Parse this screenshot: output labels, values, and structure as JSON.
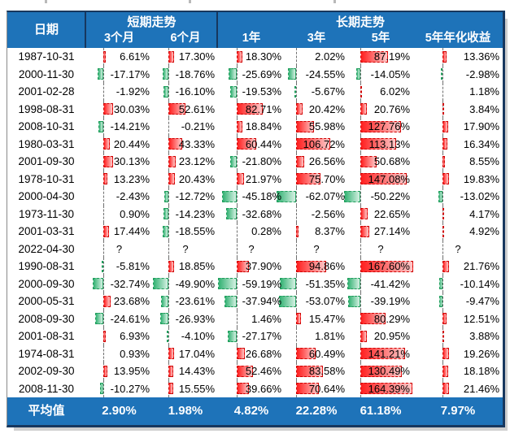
{
  "colors": {
    "header_bg": "#1E73B9",
    "header_separator": "#17375E",
    "positive_bar_red": "#FF1F1F",
    "negative_bar_green": "#33B273",
    "axis_line": "#707070"
  },
  "header": {
    "date": "日期",
    "groups": [
      {
        "label": "短期走势",
        "columns": [
          "3个月",
          "6个月"
        ]
      },
      {
        "label": "长期走势",
        "columns": [
          "1年",
          "3年",
          "5年",
          "5年年化收益"
        ]
      }
    ]
  },
  "table": {
    "unknown_symbol": "?",
    "rows": [
      {
        "date": "1987-10-31",
        "values": [
          6.61,
          17.3,
          18.3,
          2.02,
          87.19,
          13.36
        ]
      },
      {
        "date": "2000-11-30",
        "values": [
          -17.17,
          -18.76,
          -25.69,
          -24.55,
          -14.05,
          -2.98
        ]
      },
      {
        "date": "2001-02-28",
        "values": [
          -1.92,
          -16.1,
          -19.53,
          -5.67,
          6.02,
          1.18
        ]
      },
      {
        "date": "1998-08-31",
        "values": [
          30.03,
          52.61,
          82.71,
          20.42,
          20.76,
          3.84
        ]
      },
      {
        "date": "2008-10-31",
        "values": [
          -14.21,
          -0.21,
          18.84,
          55.98,
          127.76,
          17.9
        ]
      },
      {
        "date": "1980-03-31",
        "values": [
          20.44,
          43.33,
          60.44,
          106.72,
          113.13,
          16.34
        ]
      },
      {
        "date": "2001-09-30",
        "values": [
          30.13,
          23.12,
          -21.8,
          26.56,
          50.68,
          8.55
        ]
      },
      {
        "date": "1978-10-31",
        "values": [
          13.23,
          20.43,
          21.97,
          75.7,
          147.08,
          19.83
        ]
      },
      {
        "date": "2000-04-30",
        "values": [
          -2.43,
          -12.72,
          -45.18,
          -62.07,
          -50.22,
          -13.02
        ]
      },
      {
        "date": "1973-11-30",
        "values": [
          0.9,
          -14.23,
          -32.68,
          -2.56,
          22.65,
          4.17
        ]
      },
      {
        "date": "2001-03-31",
        "values": [
          17.44,
          -18.55,
          0.28,
          8.37,
          27.14,
          4.92
        ]
      },
      {
        "date": "2022-04-30",
        "values": [
          null,
          null,
          null,
          null,
          null,
          null
        ]
      },
      {
        "date": "1990-08-31",
        "values": [
          -5.81,
          18.85,
          37.9,
          94.86,
          167.6,
          21.76
        ]
      },
      {
        "date": "2000-09-30",
        "values": [
          -32.74,
          -49.9,
          -59.19,
          -51.35,
          -41.42,
          -10.14
        ]
      },
      {
        "date": "2000-05-31",
        "values": [
          23.68,
          -23.61,
          -37.94,
          -53.07,
          -39.19,
          -9.47
        ]
      },
      {
        "date": "2008-09-30",
        "values": [
          -24.61,
          -26.93,
          1.46,
          15.47,
          80.29,
          12.51
        ]
      },
      {
        "date": "2001-08-31",
        "values": [
          6.93,
          -4.1,
          -27.17,
          1.81,
          20.95,
          3.88
        ]
      },
      {
        "date": "1974-08-31",
        "values": [
          0.93,
          17.04,
          26.68,
          60.49,
          141.21,
          19.26
        ]
      },
      {
        "date": "2002-09-30",
        "values": [
          13.95,
          14.43,
          52.46,
          83.58,
          130.49,
          18.18
        ]
      },
      {
        "date": "2008-11-30",
        "values": [
          -10.27,
          15.55,
          39.66,
          70.64,
          164.39,
          21.46
        ]
      }
    ],
    "average": {
      "label": "平均值",
      "values": [
        2.9,
        1.98,
        4.82,
        22.28,
        61.18,
        7.97
      ]
    }
  }
}
